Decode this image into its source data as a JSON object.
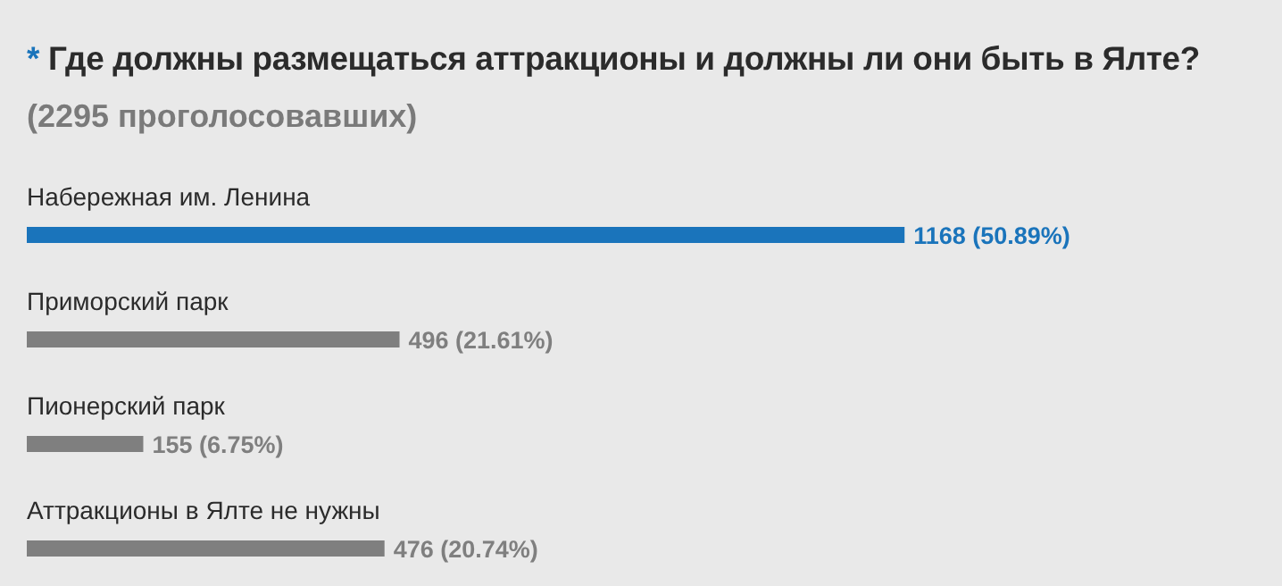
{
  "chart_data": {
    "type": "bar",
    "orientation": "horizontal",
    "title": "* Где должны размещаться аттракционы и должны ли они быть в Ялте?",
    "subtitle": "(2295 проголосовавших)",
    "categories": [
      "Набережная им. Ленина",
      "Приморский парк",
      "Пионерский парк",
      "Аттракционы в Ялте не нужны"
    ],
    "values": [
      1168,
      496,
      155,
      476
    ],
    "colors": [
      "#1a74bb",
      "#7f7f7f",
      "#7f7f7f",
      "#7f7f7f"
    ],
    "value_labels": [
      "1168 (50.89%)",
      "496 (21.61%)",
      "155 (6.75%)",
      "476 (20.74%)"
    ],
    "grid": false
  }
}
